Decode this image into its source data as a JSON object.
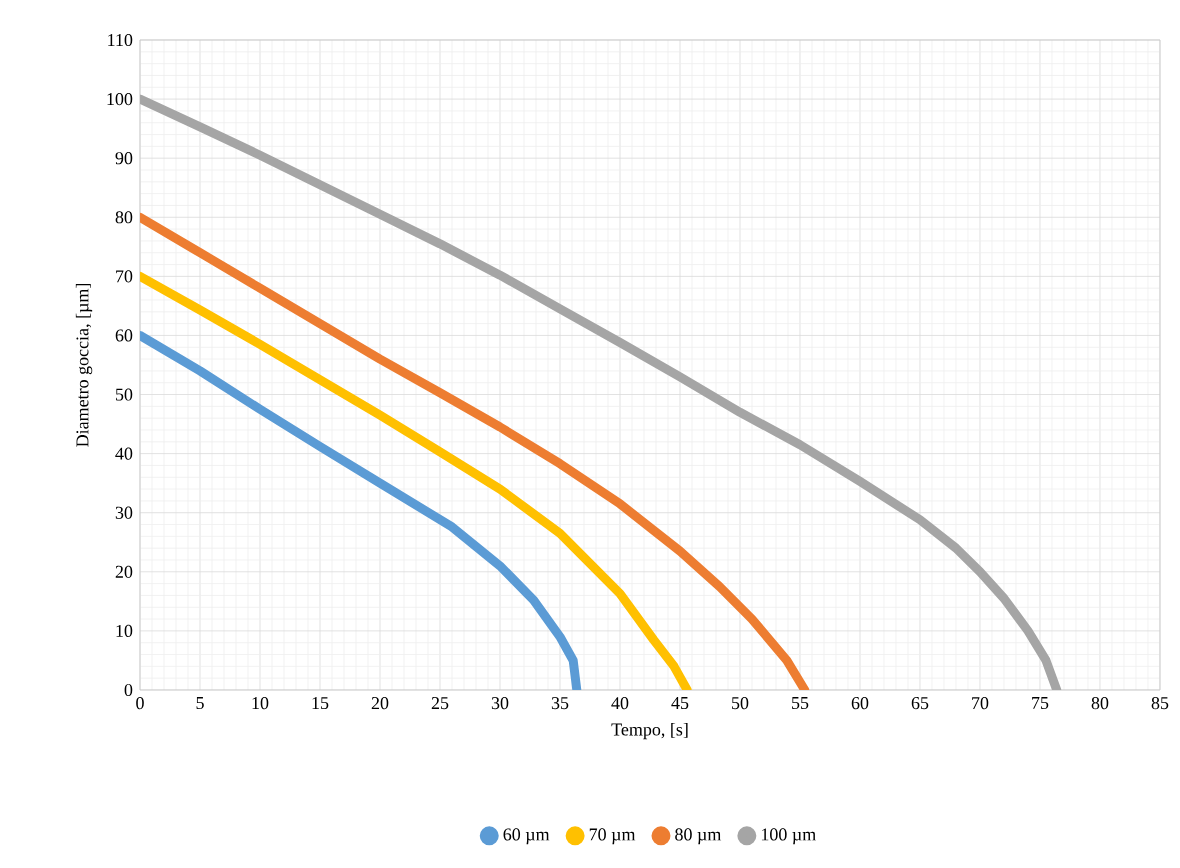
{
  "chart_data": {
    "type": "line",
    "xlabel": "Tempo, [s]",
    "ylabel": "Diametro goccia, [µm]",
    "xlim": [
      0,
      85
    ],
    "ylim": [
      0,
      110
    ],
    "xticks": [
      0,
      5,
      10,
      15,
      20,
      25,
      30,
      35,
      40,
      45,
      50,
      55,
      60,
      65,
      70,
      75,
      80,
      85
    ],
    "yticks": [
      0,
      10,
      20,
      30,
      40,
      50,
      60,
      70,
      80,
      90,
      100,
      110
    ],
    "grid": true,
    "legend": "bottom",
    "line_style": "solid",
    "series": [
      {
        "name": "60 µm",
        "color": "#5b9bd5",
        "x": [
          0,
          5,
          10,
          15,
          20,
          26,
          30,
          32.8,
          35,
          36.1,
          36.4
        ],
        "values": [
          60,
          54,
          47.5,
          41.2,
          35,
          27.6,
          21,
          15.2,
          9,
          5,
          0
        ]
      },
      {
        "name": "70 µm",
        "color": "#ffc000",
        "x": [
          0,
          5,
          10,
          15,
          20,
          25,
          30,
          35,
          40,
          42.8,
          44.5,
          45.6
        ],
        "values": [
          70,
          64.3,
          58.5,
          52.5,
          46.5,
          40.3,
          34,
          26.5,
          16.3,
          8.5,
          4,
          0
        ]
      },
      {
        "name": "80 µm",
        "color": "#ed7d31",
        "x": [
          0,
          5,
          10,
          15,
          20,
          25,
          30,
          35,
          40,
          45,
          48.3,
          51,
          53.9,
          55.4
        ],
        "values": [
          80,
          74,
          68,
          62,
          56,
          50.3,
          44.5,
          38.3,
          31.5,
          23.5,
          17.5,
          12,
          5,
          0
        ]
      },
      {
        "name": "100 µm",
        "color": "#a5a5a5",
        "x": [
          0,
          5,
          10,
          15,
          20,
          25,
          30,
          35,
          40,
          45,
          50,
          55,
          60,
          65,
          68,
          70,
          72,
          74,
          75.5,
          76.4
        ],
        "values": [
          100,
          95.3,
          90.5,
          85.5,
          80.5,
          75.5,
          70.2,
          64.5,
          58.8,
          53,
          47,
          41.5,
          35.3,
          28.8,
          24,
          20,
          15.5,
          10,
          5,
          0
        ]
      }
    ]
  }
}
